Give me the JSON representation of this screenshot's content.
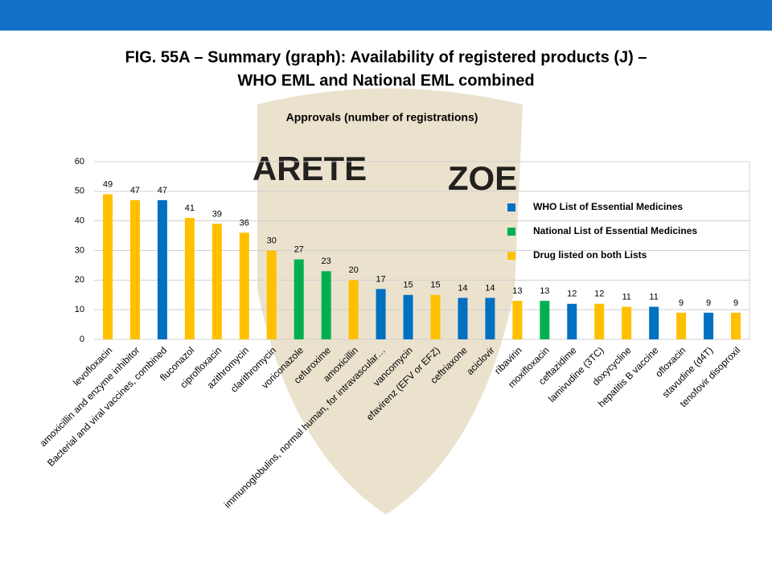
{
  "chart_data": {
    "type": "bar",
    "title": "FIG. 55A – Summary (graph): Availability of registered products (J) –",
    "title_line2": "WHO EML and National EML combined",
    "subtitle": "Approvals (number of registrations)",
    "watermark": [
      "ARETE",
      "ZOE"
    ],
    "categories": [
      "levofloxacin",
      "amoxicillin and enzyme inhibitor",
      "Bacterial and viral vaccines, combined",
      "fluconazol",
      "ciprofloxacin",
      "azithromycin",
      "clarithromycin",
      "voriconazole",
      "cefuroxime",
      "amoxicillin",
      "immunoglobulins, normal human, for intravascular…",
      "vancomycin",
      "efavirenz (EFV or EFZ)",
      "ceftriaxone",
      "aciclovir",
      "ribavirin",
      "moxifloxacin",
      "ceftazidime",
      "lamivudine (3TC)",
      "doxycycline",
      "hepatitis B vaccine",
      "ofloxacin",
      "stavudine (d4T)",
      "tenofovir disoproxil"
    ],
    "series": [
      {
        "name": "WHO List of Essential Medicines",
        "color": "#0070c0",
        "values": [
          null,
          null,
          47,
          null,
          null,
          null,
          null,
          null,
          null,
          null,
          17,
          15,
          null,
          14,
          14,
          null,
          null,
          12,
          null,
          null,
          11,
          null,
          9,
          null
        ]
      },
      {
        "name": "National List of Essential Medicines",
        "color": "#00b050",
        "values": [
          null,
          null,
          null,
          null,
          null,
          null,
          null,
          27,
          23,
          null,
          null,
          null,
          null,
          null,
          null,
          null,
          13,
          null,
          null,
          null,
          null,
          null,
          null,
          null
        ]
      },
      {
        "name": "Drug listed on both Lists",
        "color": "#ffc000",
        "values": [
          49,
          47,
          null,
          41,
          39,
          36,
          30,
          null,
          null,
          20,
          null,
          null,
          15,
          null,
          null,
          13,
          null,
          null,
          12,
          11,
          null,
          9,
          null,
          9
        ]
      }
    ],
    "ylim": [
      0,
      60
    ],
    "yticks": [
      0,
      10,
      20,
      30,
      40,
      50,
      60
    ],
    "grid": true,
    "legend": "right"
  }
}
